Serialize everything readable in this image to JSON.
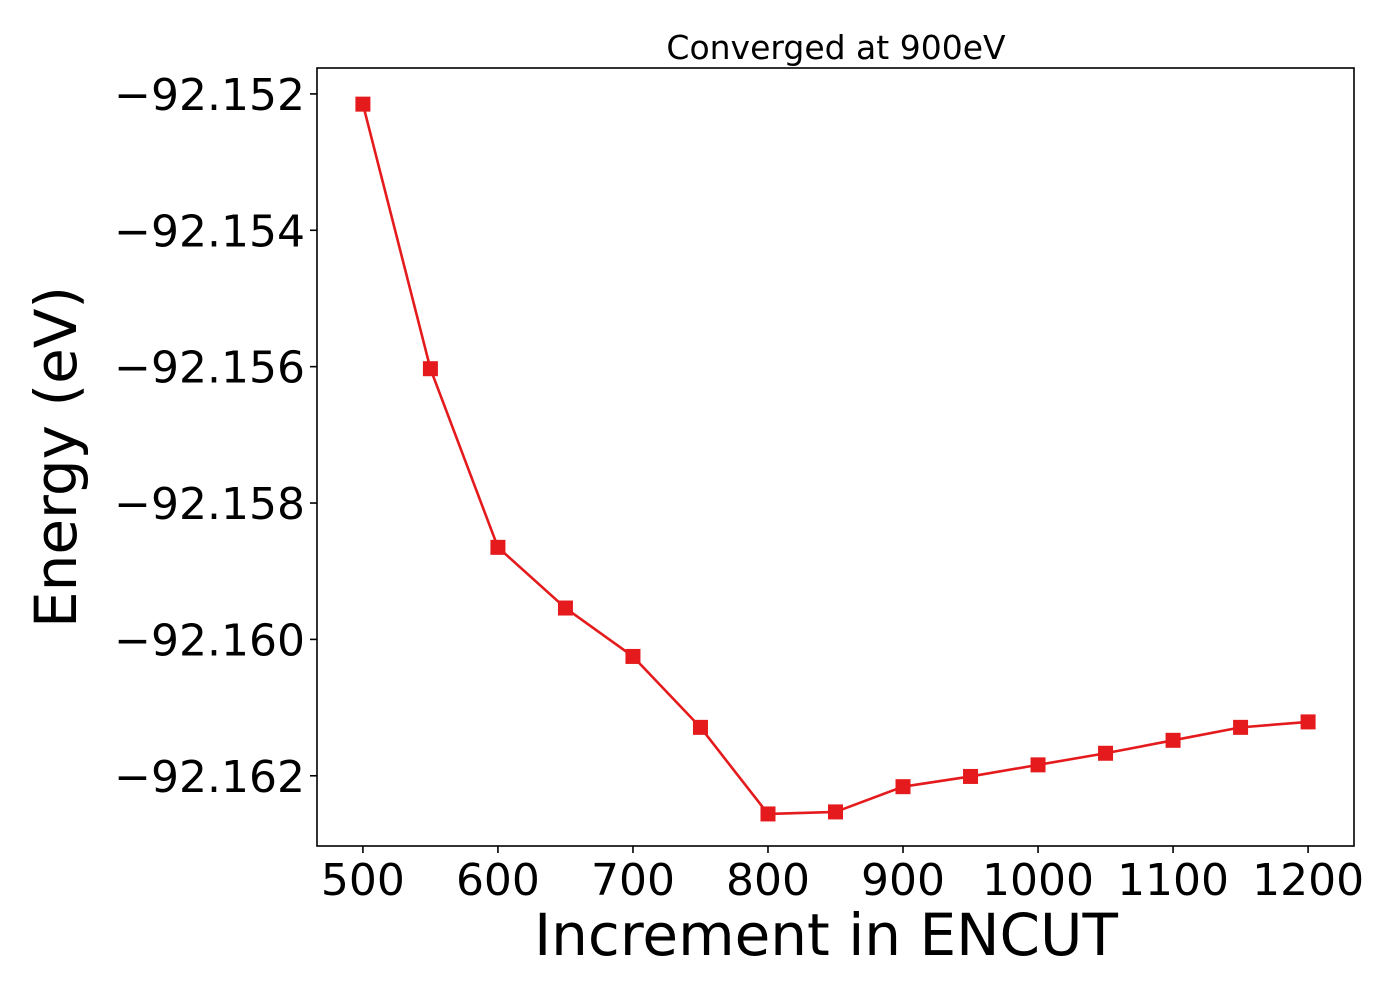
{
  "chart_data": {
    "type": "line",
    "title": "Converged at 900eV",
    "xlabel": "Increment in ENCUT",
    "ylabel": "Energy (eV)",
    "x": [
      500,
      550,
      600,
      650,
      700,
      750,
      800,
      850,
      900,
      950,
      1000,
      1050,
      1100,
      1150,
      1200
    ],
    "series": [
      {
        "values": [
          -92.15215,
          -92.15603,
          -92.15865,
          -92.15954,
          -92.16025,
          -92.16129,
          -92.16256,
          -92.16253,
          -92.16216,
          -92.16201,
          -92.16184,
          -92.16167,
          -92.16148,
          -92.16129,
          -92.16121
        ],
        "color": "#e41a1c",
        "marker": "square"
      }
    ],
    "xlim": [
      466,
      1234
    ],
    "ylim": [
      -92.16303,
      -92.15162
    ],
    "xticks": [
      500,
      600,
      700,
      800,
      900,
      1000,
      1100,
      1200
    ],
    "xtick_labels": [
      "500",
      "600",
      "700",
      "800",
      "900",
      "1000",
      "1100",
      "1200"
    ],
    "yticks": [
      -92.152,
      -92.154,
      -92.156,
      -92.158,
      -92.16,
      -92.162
    ],
    "ytick_labels": [
      "−92.152",
      "−92.154",
      "−92.156",
      "−92.158",
      "−92.160",
      "−92.162"
    ],
    "grid": false,
    "legend": "none"
  }
}
